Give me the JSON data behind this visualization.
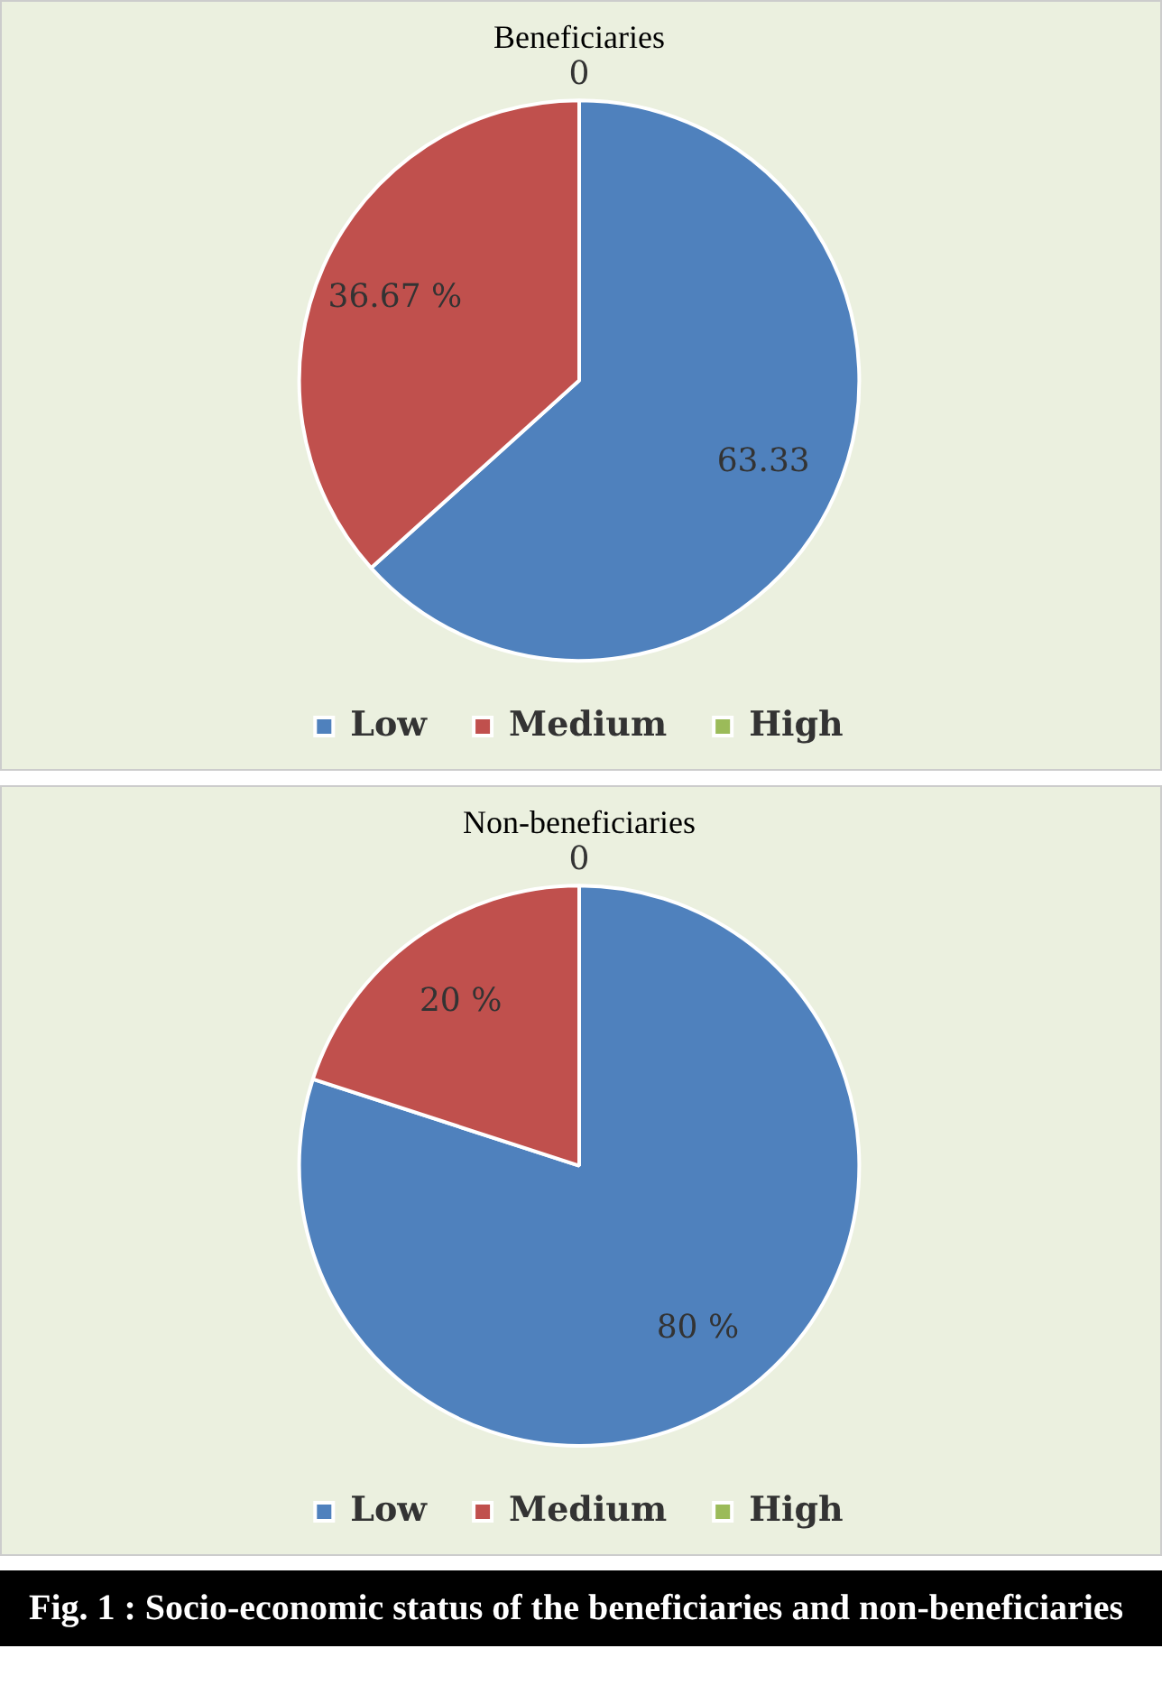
{
  "chart_data": [
    {
      "type": "pie",
      "title": "Beneficiaries",
      "categories": [
        "Low",
        "Medium",
        "High"
      ],
      "values": [
        63.33,
        36.67,
        0
      ],
      "colors": [
        "#4f81bd",
        "#c0504d",
        "#9bbb59"
      ],
      "value_labels": [
        "63.33",
        "36.67 %",
        "0"
      ],
      "legend": "bottom"
    },
    {
      "type": "pie",
      "title": "Non-beneficiaries",
      "categories": [
        "Low",
        "Medium",
        "High"
      ],
      "values": [
        80,
        20,
        0
      ],
      "colors": [
        "#4f81bd",
        "#c0504d",
        "#9bbb59"
      ],
      "value_labels": [
        "80 %",
        "20 %",
        "0"
      ],
      "legend": "bottom",
      "annotations": [
        "Fig. 1 :   Socio-economic status of the beneficiaries and non-beneficiaries"
      ]
    }
  ]
}
